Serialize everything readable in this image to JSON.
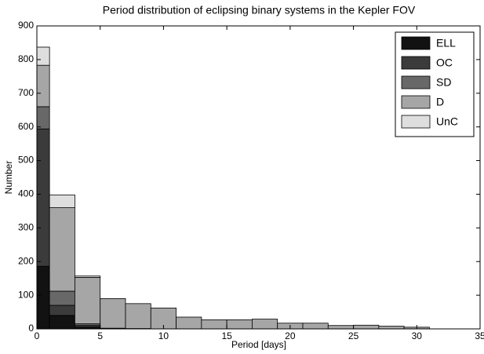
{
  "chart_data": {
    "type": "histogram",
    "stacked": true,
    "title": "Period distribution of eclipsing binary systems in the Kepler FOV",
    "x_label": "Period [days]",
    "y_label": "Number",
    "bins": [
      0,
      1,
      3,
      5,
      7,
      9,
      11,
      13,
      15,
      17,
      19,
      21,
      23,
      25,
      27,
      29,
      31
    ],
    "series": [
      {
        "name": "ELL",
        "color": "#121212",
        "values": [
          186,
          40,
          5,
          0,
          0,
          0,
          0,
          0,
          0,
          0,
          0,
          0,
          0,
          0,
          0,
          0
        ]
      },
      {
        "name": "OC",
        "color": "#3b3b3b",
        "values": [
          408,
          30,
          5,
          0,
          0,
          0,
          0,
          0,
          0,
          0,
          0,
          0,
          0,
          0,
          0,
          0
        ]
      },
      {
        "name": "SD",
        "color": "#686868",
        "values": [
          66,
          42,
          5,
          2,
          1,
          0,
          0,
          0,
          0,
          0,
          0,
          0,
          0,
          0,
          0,
          0
        ]
      },
      {
        "name": "D",
        "color": "#a6a6a6",
        "values": [
          123,
          248,
          138,
          88,
          74,
          62,
          35,
          27,
          27,
          29,
          17,
          17,
          10,
          11,
          8,
          5
        ]
      },
      {
        "name": "UnC",
        "color": "#dedede",
        "values": [
          54,
          38,
          4,
          0,
          0,
          0,
          0,
          0,
          0,
          0,
          0,
          0,
          0,
          0,
          0,
          0
        ]
      }
    ],
    "xlim": [
      0,
      35
    ],
    "xticks": [
      0,
      5,
      10,
      15,
      20,
      25,
      30,
      35
    ],
    "ylim": [
      0,
      900
    ],
    "yticks": [
      0,
      100,
      200,
      300,
      400,
      500,
      600,
      700,
      800,
      900
    ],
    "legend": "upper right"
  }
}
